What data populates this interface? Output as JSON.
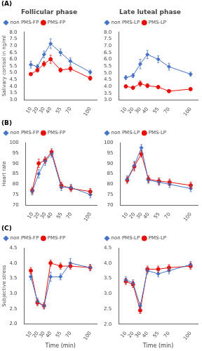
{
  "chart_data": [
    {
      "type": "line",
      "title": "Follicular phase",
      "annotations": [
        "(A)"
      ],
      "x": [
        10,
        20,
        30,
        40,
        55,
        70,
        100
      ],
      "xlim": [
        0,
        110
      ],
      "xticks": [
        10,
        20,
        30,
        40,
        55,
        70,
        100
      ],
      "ylim": [
        3.0,
        8.0
      ],
      "yticks": [
        {
          "value": 3.0,
          "label": "3.0"
        },
        3.5,
        {
          "value": 4.0,
          "label": "4.0"
        },
        4.5,
        {
          "value": 5.0,
          "label": "5.0"
        },
        5.5,
        {
          "value": 6.0,
          "label": "6.0"
        },
        6.5,
        {
          "value": 7.0,
          "label": "7.0"
        },
        7.5,
        {
          "value": 8.0,
          "label": "8.0"
        }
      ],
      "ylabel": "Salivary cortisol in ng/ml",
      "legend": "upper left",
      "grid": false,
      "series": [
        {
          "name": "non PMS-FP",
          "color": "#4472C4",
          "marker": "diamond",
          "values": [
            5.6,
            5.45,
            6.35,
            7.15,
            6.5,
            5.85,
            5.05
          ],
          "errors": [
            0.25,
            0.15,
            0.25,
            0.35,
            0.25,
            0.25,
            0.15
          ]
        },
        {
          "name": "PMS-FP",
          "color": "#E8100A",
          "marker": "circle",
          "values": [
            4.9,
            5.2,
            5.65,
            6.0,
            5.2,
            5.3,
            4.6
          ],
          "errors": [
            0.1,
            0.15,
            0.2,
            0.3,
            0.15,
            0.2,
            0.15
          ]
        }
      ]
    },
    {
      "type": "line",
      "title": "Late luteal phase",
      "x": [
        10,
        20,
        30,
        40,
        55,
        70,
        100
      ],
      "xlim": [
        0,
        110
      ],
      "xticks": [
        10,
        20,
        30,
        40,
        55,
        70,
        100
      ],
      "ylim": [
        3.0,
        8.0
      ],
      "yticks": [
        {
          "value": 3.0,
          "label": "3.0"
        },
        3.5,
        {
          "value": 4.0,
          "label": "4.0"
        },
        4.5,
        {
          "value": 5.0,
          "label": "5.0"
        },
        5.5,
        {
          "value": 6.0,
          "label": "6.0"
        },
        6.5,
        {
          "value": 7.0,
          "label": "7.0"
        },
        7.5,
        {
          "value": 8.0,
          "label": "8.0"
        }
      ],
      "legend": "upper left",
      "grid": false,
      "series": [
        {
          "name": "non PMS-LP",
          "color": "#4472C4",
          "marker": "diamond",
          "values": [
            4.65,
            4.8,
            5.65,
            6.35,
            6.0,
            5.45,
            4.9
          ],
          "errors": [
            0.15,
            0.15,
            0.35,
            0.3,
            0.25,
            0.25,
            0.15
          ]
        },
        {
          "name": "PMS-LP",
          "color": "#E8100A",
          "marker": "circle",
          "values": [
            4.0,
            3.9,
            4.2,
            4.05,
            3.95,
            3.65,
            3.8
          ],
          "errors": [
            0.1,
            0.1,
            0.2,
            0.15,
            0.1,
            0.1,
            0.1
          ]
        }
      ]
    },
    {
      "type": "line",
      "annotations": [
        "(B)"
      ],
      "x": [
        10,
        20,
        30,
        40,
        55,
        70,
        100
      ],
      "xlim": [
        0,
        110
      ],
      "xticks": [
        10,
        20,
        30,
        40,
        55,
        70,
        100
      ],
      "ylim": [
        70,
        100
      ],
      "yticks": [
        70,
        75,
        80,
        85,
        90,
        95,
        100
      ],
      "ylabel": "Heart rate",
      "legend": "upper left",
      "grid": false,
      "series": [
        {
          "name": "non PMS-FP",
          "color": "#4472C4",
          "marker": "diamond",
          "values": [
            76.5,
            85.0,
            91.0,
            94.5,
            78.5,
            78.5,
            75.0
          ],
          "errors": [
            1.5,
            2.0,
            2.0,
            1.5,
            1.5,
            1.5,
            1.5
          ]
        },
        {
          "name": "PMS-FP",
          "color": "#E8100A",
          "marker": "circle",
          "values": [
            77.0,
            90.0,
            91.5,
            95.5,
            79.5,
            78.0,
            76.5
          ],
          "errors": [
            1.5,
            2.0,
            1.5,
            1.5,
            1.5,
            1.5,
            1.5
          ]
        }
      ]
    },
    {
      "type": "line",
      "x": [
        10,
        20,
        30,
        40,
        55,
        70,
        100
      ],
      "xlim": [
        0,
        110
      ],
      "xticks": [
        10,
        20,
        30,
        40,
        55,
        70,
        100
      ],
      "ylim": [
        70,
        100
      ],
      "yticks": [
        70,
        75,
        80,
        85,
        90,
        95,
        100
      ],
      "legend": "upper left",
      "grid": false,
      "series": [
        {
          "name": "non PMS-LP",
          "color": "#4472C4",
          "marker": "diamond",
          "values": [
            82.5,
            89.0,
            97.5,
            82.0,
            81.0,
            80.0,
            78.0
          ],
          "errors": [
            1.5,
            2.0,
            1.5,
            1.5,
            1.5,
            1.5,
            1.5
          ]
        },
        {
          "name": "PMS-LP",
          "color": "#E8100A",
          "marker": "circle",
          "values": [
            82.0,
            88.5,
            94.5,
            82.5,
            81.5,
            81.0,
            79.5
          ],
          "errors": [
            1.5,
            2.0,
            1.5,
            1.5,
            1.5,
            1.5,
            1.5
          ]
        }
      ]
    },
    {
      "type": "line",
      "annotations": [
        "(C)"
      ],
      "x": [
        10,
        20,
        30,
        40,
        55,
        70,
        100
      ],
      "xlim": [
        0,
        110
      ],
      "xticks": [
        10,
        20,
        30,
        40,
        55,
        70,
        100
      ],
      "ylim": [
        2.0,
        4.5
      ],
      "yticks": [
        {
          "value": 2.0,
          "label": "2.0"
        },
        2.5,
        {
          "value": 3.0,
          "label": "3.0"
        },
        3.5,
        {
          "value": 4.0,
          "label": "4.0"
        },
        4.5
      ],
      "ylabel": "Subjective stress",
      "xlabel": "Time (min)",
      "legend": "upper left",
      "grid": false,
      "series": [
        {
          "name": "non PMS-FP",
          "color": "#4472C4",
          "marker": "diamond",
          "values": [
            3.55,
            2.75,
            2.6,
            3.55,
            3.55,
            4.0,
            3.85
          ],
          "errors": [
            0.1,
            0.1,
            0.1,
            0.15,
            0.1,
            0.15,
            0.1
          ]
        },
        {
          "name": "PMS-FP",
          "color": "#E8100A",
          "marker": "circle",
          "values": [
            3.75,
            2.7,
            2.6,
            4.0,
            3.9,
            3.9,
            3.85
          ],
          "errors": [
            0.1,
            0.1,
            0.1,
            0.1,
            0.1,
            0.1,
            0.1
          ]
        }
      ]
    },
    {
      "type": "line",
      "x": [
        10,
        20,
        30,
        40,
        55,
        70,
        100
      ],
      "xlim": [
        0,
        110
      ],
      "xticks": [
        10,
        20,
        30,
        40,
        55,
        70,
        100
      ],
      "ylim": [
        2.0,
        4.5
      ],
      "yticks": [
        {
          "value": 2.0,
          "label": "2.0"
        },
        2.5,
        {
          "value": 3.0,
          "label": "3.0"
        },
        3.5,
        {
          "value": 4.0,
          "label": "4.0"
        },
        4.5
      ],
      "xlabel": "Time (min)",
      "legend": "upper left",
      "grid": false,
      "series": [
        {
          "name": "non PMS-LP",
          "color": "#4472C4",
          "marker": "diamond",
          "values": [
            3.45,
            3.35,
            2.6,
            3.75,
            3.65,
            3.75,
            3.95
          ],
          "errors": [
            0.1,
            0.1,
            0.1,
            0.1,
            0.1,
            0.1,
            0.1
          ]
        },
        {
          "name": "PMS-LP",
          "color": "#E8100A",
          "marker": "circle",
          "values": [
            3.4,
            3.3,
            2.45,
            3.8,
            3.8,
            3.85,
            3.9
          ],
          "errors": [
            0.1,
            0.1,
            0.1,
            0.1,
            0.1,
            0.1,
            0.1
          ]
        }
      ]
    }
  ]
}
